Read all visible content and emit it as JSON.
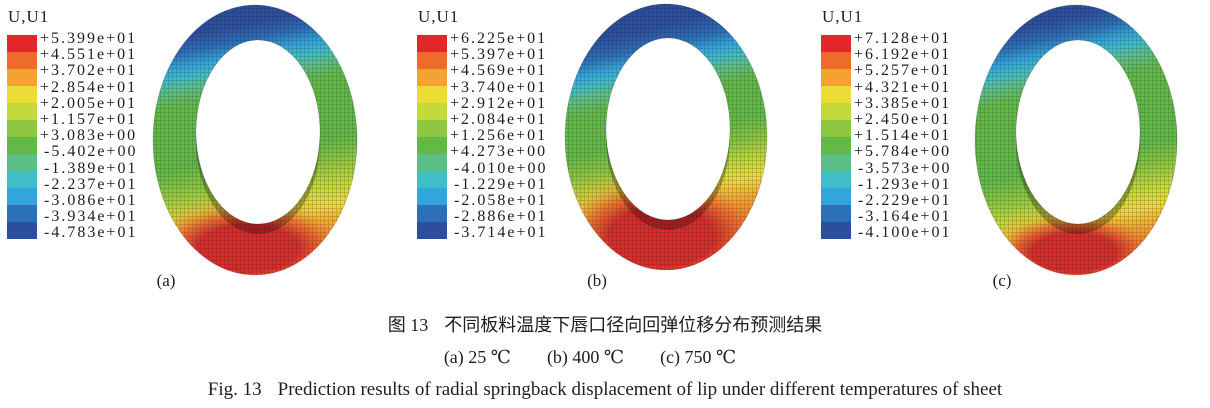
{
  "legend_colors": [
    "#E3262B",
    "#EE6B2C",
    "#F4A332",
    "#EDDC36",
    "#C6D93C",
    "#8DC63F",
    "#62B946",
    "#5CBF8A",
    "#3FBDC8",
    "#32A6DC",
    "#2C70BB",
    "#2C4E9E"
  ],
  "panels": [
    {
      "label": "(a)",
      "legend_title": "U,U1",
      "legend_labels": [
        "+5.399e+01",
        "+4.551e+01",
        "+3.702e+01",
        "+2.854e+01",
        "+2.005e+01",
        "+1.157e+01",
        "+3.083e+00",
        "-5.402e+00",
        "-1.389e+01",
        "-2.237e+01",
        "-3.086e+01",
        "-3.934e+01",
        "-4.783e+01"
      ]
    },
    {
      "label": "(b)",
      "legend_title": "U,U1",
      "legend_labels": [
        "+6.225e+01",
        "+5.397e+01",
        "+4.569e+01",
        "+3.740e+01",
        "+2.912e+01",
        "+2.084e+01",
        "+1.256e+01",
        "+4.273e+00",
        "-4.010e+00",
        "-1.229e+01",
        "-2.058e+01",
        "-2.886e+01",
        "-3.714e+01"
      ]
    },
    {
      "label": "(c)",
      "legend_title": "U,U1",
      "legend_labels": [
        "+7.128e+01",
        "+6.192e+01",
        "+5.257e+01",
        "+4.321e+01",
        "+3.385e+01",
        "+2.450e+01",
        "+1.514e+01",
        "+5.784e+00",
        "-3.573e+00",
        "-1.293e+01",
        "-2.229e+01",
        "-3.164e+01",
        "-4.100e+01"
      ]
    }
  ],
  "caption": {
    "zh": {
      "fig_no": "图 13",
      "title": "不同板料温度下唇口径向回弹位移分布预测结果"
    },
    "conditions": [
      "(a) 25 ℃",
      "(b) 400 ℃",
      "(c) 750 ℃"
    ],
    "en": {
      "fig_no": "Fig. 13",
      "title": "Prediction results of radial springback displacement of lip under different temperatures of sheet"
    }
  }
}
